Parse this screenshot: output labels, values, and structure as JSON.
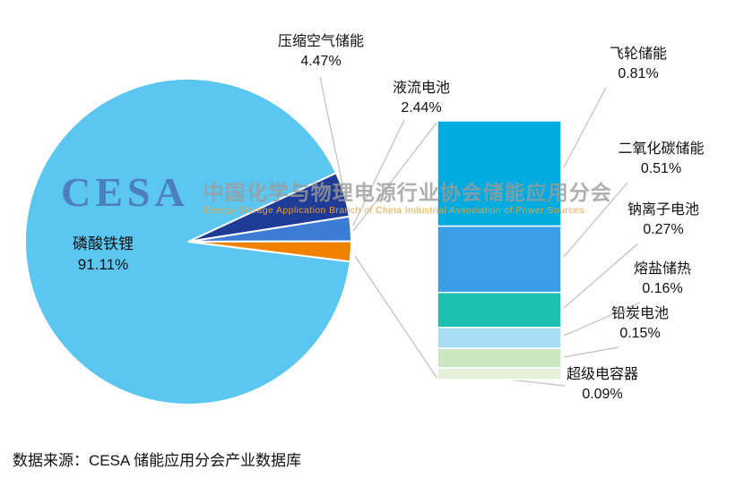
{
  "chart_data": {
    "type": "pie",
    "variant": "bar-of-pie",
    "title": "",
    "pie_slices": [
      {
        "key": "lfp",
        "label": "磷酸铁锂",
        "value": 91.11,
        "pct_label": "91.11%",
        "color": "#5BC6F0"
      },
      {
        "key": "caes",
        "label": "压缩空气储能",
        "value": 4.47,
        "pct_label": "4.47%",
        "color": "#1E3C96"
      },
      {
        "key": "flow-battery",
        "label": "液流电池",
        "value": 2.44,
        "pct_label": "2.44%",
        "color": "#3C7CD4"
      }
    ],
    "other_slice": {
      "key": "other-breakout",
      "value": 1.99,
      "color": "#F08200"
    },
    "bar_segments": [
      {
        "key": "flywheel",
        "label": "飞轮储能",
        "value": 0.81,
        "pct_label": "0.81%",
        "color": "#00ABE0"
      },
      {
        "key": "co2",
        "label": "二氧化碳储能",
        "value": 0.51,
        "pct_label": "0.51%",
        "color": "#3B9FE8"
      },
      {
        "key": "sodium-ion",
        "label": "钠离子电池",
        "value": 0.27,
        "pct_label": "0.27%",
        "color": "#1EBFAE"
      },
      {
        "key": "molten-salt",
        "label": "熔盐储热",
        "value": 0.16,
        "pct_label": "0.16%",
        "color": "#A8DCF5"
      },
      {
        "key": "lead-carbon",
        "label": "铅炭电池",
        "value": 0.15,
        "pct_label": "0.15%",
        "color": "#CCE6C2"
      },
      {
        "key": "supercap",
        "label": "超级电容器",
        "value": 0.09,
        "pct_label": "0.09%",
        "color": "#E4F0DC"
      }
    ],
    "legend_position": "callout-labels",
    "grid": false
  },
  "watermark": {
    "logo": "CESA",
    "cn": "中国化学与物理电源行业协会储能应用分会",
    "en": "Energy Storage Application Branch of China Industrial Association of Power Sources"
  },
  "footer": {
    "source": "数据来源：CESA 储能应用分会产业数据库"
  },
  "colors": {
    "leader_line": "#BFBFBF",
    "background": "#FFFFFF",
    "label_text": "#111111",
    "watermark_logo": "#4A72B8",
    "watermark_cn": "#9C9C9C",
    "watermark_en": "#EFA23B"
  }
}
